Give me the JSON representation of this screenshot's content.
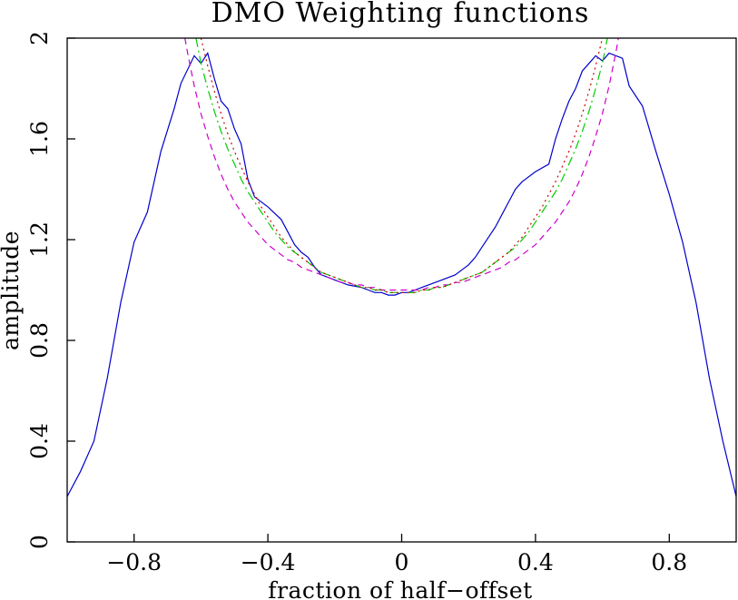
{
  "chart_data": {
    "type": "line",
    "title": "DMO Weighting functions",
    "xlabel": "fraction of half−offset",
    "ylabel": "amplitude",
    "xlim": [
      -1,
      1
    ],
    "ylim": [
      0,
      2
    ],
    "xticks": [
      {
        "value": -0.8,
        "label": "−0.8"
      },
      {
        "value": -0.4,
        "label": "−0.4"
      },
      {
        "value": 0,
        "label": "0"
      },
      {
        "value": 0.4,
        "label": "0.4"
      },
      {
        "value": 0.8,
        "label": "0.8"
      }
    ],
    "yticks": [
      {
        "value": 0,
        "label": "0"
      },
      {
        "value": 0.4,
        "label": "0.4"
      },
      {
        "value": 0.8,
        "label": "0.8"
      },
      {
        "value": 1.2,
        "label": "1.2"
      },
      {
        "value": 1.6,
        "label": "1.6"
      },
      {
        "value": 2,
        "label": "2"
      }
    ],
    "grid": false,
    "legend": "none",
    "series": [
      {
        "color": "#0000cc",
        "dash": "solid",
        "x": [
          -1.0,
          -0.96,
          -0.92,
          -0.88,
          -0.84,
          -0.8,
          -0.76,
          -0.72,
          -0.68,
          -0.66,
          -0.62,
          -0.6,
          -0.58,
          -0.56,
          -0.54,
          -0.52,
          -0.5,
          -0.48,
          -0.46,
          -0.44,
          -0.4,
          -0.36,
          -0.34,
          -0.32,
          -0.3,
          -0.28,
          -0.26,
          -0.24,
          -0.22,
          -0.2,
          -0.18,
          -0.16,
          -0.12,
          -0.1,
          -0.08,
          -0.06,
          -0.04,
          -0.02,
          0.0,
          0.02,
          0.04,
          0.06,
          0.08,
          0.1,
          0.12,
          0.16,
          0.18,
          0.2,
          0.22,
          0.24,
          0.26,
          0.28,
          0.3,
          0.32,
          0.34,
          0.36,
          0.4,
          0.44,
          0.46,
          0.48,
          0.5,
          0.52,
          0.54,
          0.56,
          0.58,
          0.6,
          0.62,
          0.66,
          0.68,
          0.72,
          0.76,
          0.8,
          0.84,
          0.88,
          0.92,
          0.96,
          1.0
        ],
        "y": [
          0.18,
          0.28,
          0.4,
          0.65,
          0.95,
          1.19,
          1.31,
          1.55,
          1.72,
          1.82,
          1.93,
          1.9,
          1.94,
          1.84,
          1.75,
          1.72,
          1.64,
          1.58,
          1.44,
          1.37,
          1.33,
          1.28,
          1.23,
          1.18,
          1.15,
          1.13,
          1.09,
          1.06,
          1.05,
          1.04,
          1.03,
          1.02,
          1.01,
          1.0,
          0.99,
          0.99,
          0.98,
          0.98,
          0.99,
          0.99,
          1.0,
          1.01,
          1.02,
          1.03,
          1.04,
          1.06,
          1.08,
          1.1,
          1.13,
          1.17,
          1.21,
          1.25,
          1.3,
          1.35,
          1.4,
          1.43,
          1.47,
          1.5,
          1.6,
          1.68,
          1.75,
          1.8,
          1.87,
          1.9,
          1.93,
          1.91,
          1.94,
          1.92,
          1.81,
          1.73,
          1.55,
          1.38,
          1.19,
          0.95,
          0.65,
          0.4,
          0.18
        ]
      },
      {
        "color": "#cc00cc",
        "dash": "dashed",
        "x": [
          -0.648,
          -0.64,
          -0.62,
          -0.6,
          -0.58,
          -0.56,
          -0.54,
          -0.52,
          -0.5,
          -0.48,
          -0.46,
          -0.44,
          -0.42,
          -0.4,
          -0.38,
          -0.36,
          -0.34,
          -0.32,
          -0.3,
          -0.28,
          -0.26,
          -0.24,
          -0.22,
          -0.2,
          -0.18,
          -0.16,
          -0.14,
          -0.12,
          -0.1,
          -0.08,
          -0.06,
          -0.04,
          -0.02,
          0.0,
          0.02,
          0.04,
          0.06,
          0.08,
          0.1,
          0.12,
          0.14,
          0.16,
          0.18,
          0.2,
          0.22,
          0.24,
          0.26,
          0.28,
          0.3,
          0.32,
          0.34,
          0.36,
          0.38,
          0.4,
          0.42,
          0.44,
          0.46,
          0.48,
          0.5,
          0.52,
          0.54,
          0.56,
          0.58,
          0.6,
          0.62,
          0.64,
          0.648
        ],
        "y": [
          2.0,
          1.94,
          1.81,
          1.7,
          1.61,
          1.53,
          1.46,
          1.4,
          1.35,
          1.31,
          1.27,
          1.24,
          1.21,
          1.18,
          1.16,
          1.14,
          1.12,
          1.11,
          1.09,
          1.08,
          1.07,
          1.06,
          1.05,
          1.04,
          1.03,
          1.03,
          1.02,
          1.02,
          1.01,
          1.01,
          1.0,
          1.0,
          1.0,
          1.0,
          1.0,
          1.0,
          1.0,
          1.01,
          1.01,
          1.02,
          1.02,
          1.03,
          1.03,
          1.04,
          1.05,
          1.06,
          1.07,
          1.08,
          1.09,
          1.11,
          1.12,
          1.14,
          1.16,
          1.18,
          1.21,
          1.24,
          1.27,
          1.31,
          1.35,
          1.4,
          1.46,
          1.53,
          1.61,
          1.7,
          1.81,
          1.94,
          2.0
        ]
      },
      {
        "color": "#00cc00",
        "dash": "dashdot",
        "x": [
          -0.615,
          -0.6,
          -0.58,
          -0.56,
          -0.54,
          -0.52,
          -0.5,
          -0.48,
          -0.46,
          -0.44,
          -0.42,
          -0.4,
          -0.38,
          -0.36,
          -0.34,
          -0.32,
          -0.3,
          -0.28,
          -0.26,
          -0.24,
          -0.22,
          -0.2,
          -0.18,
          -0.16,
          -0.14,
          -0.12,
          -0.1,
          -0.08,
          -0.06,
          -0.04,
          -0.02,
          0.0,
          0.02,
          0.04,
          0.06,
          0.08,
          0.1,
          0.12,
          0.14,
          0.16,
          0.18,
          0.2,
          0.22,
          0.24,
          0.26,
          0.28,
          0.3,
          0.32,
          0.34,
          0.36,
          0.38,
          0.4,
          0.42,
          0.44,
          0.46,
          0.48,
          0.5,
          0.52,
          0.54,
          0.56,
          0.58,
          0.6,
          0.615
        ],
        "y": [
          2.0,
          1.9,
          1.8,
          1.71,
          1.63,
          1.56,
          1.5,
          1.44,
          1.39,
          1.35,
          1.31,
          1.27,
          1.23,
          1.2,
          1.17,
          1.15,
          1.13,
          1.11,
          1.09,
          1.07,
          1.06,
          1.05,
          1.04,
          1.03,
          1.02,
          1.01,
          1.01,
          1.0,
          1.0,
          0.99,
          0.99,
          0.99,
          0.99,
          0.99,
          1.0,
          1.0,
          1.01,
          1.01,
          1.02,
          1.03,
          1.04,
          1.05,
          1.06,
          1.07,
          1.09,
          1.11,
          1.13,
          1.15,
          1.17,
          1.2,
          1.23,
          1.27,
          1.31,
          1.35,
          1.39,
          1.44,
          1.5,
          1.56,
          1.63,
          1.71,
          1.8,
          1.9,
          2.0
        ]
      },
      {
        "color": "#cc0000",
        "dash": "dotted",
        "x": [
          -0.6,
          -0.58,
          -0.56,
          -0.54,
          -0.52,
          -0.5,
          -0.48,
          -0.46,
          -0.44,
          -0.42,
          -0.4,
          -0.38,
          -0.36,
          -0.34,
          -0.32,
          -0.3,
          -0.28,
          -0.26,
          -0.24,
          -0.22,
          -0.2,
          -0.18,
          -0.16,
          -0.14,
          -0.12,
          -0.1,
          -0.08,
          -0.06,
          -0.04,
          -0.02,
          0.0,
          0.02,
          0.04,
          0.06,
          0.08,
          0.1,
          0.12,
          0.14,
          0.16,
          0.18,
          0.2,
          0.22,
          0.24,
          0.26,
          0.28,
          0.3,
          0.32,
          0.34,
          0.36,
          0.38,
          0.4,
          0.42,
          0.44,
          0.46,
          0.48,
          0.5,
          0.52,
          0.54,
          0.56,
          0.58,
          0.6
        ],
        "y": [
          2.0,
          1.89,
          1.79,
          1.7,
          1.62,
          1.55,
          1.49,
          1.43,
          1.38,
          1.33,
          1.29,
          1.25,
          1.21,
          1.18,
          1.15,
          1.13,
          1.11,
          1.09,
          1.07,
          1.06,
          1.05,
          1.04,
          1.03,
          1.02,
          1.01,
          1.01,
          1.0,
          1.0,
          0.99,
          0.99,
          0.99,
          0.99,
          0.99,
          1.0,
          1.0,
          1.01,
          1.01,
          1.02,
          1.03,
          1.04,
          1.05,
          1.06,
          1.07,
          1.09,
          1.11,
          1.13,
          1.15,
          1.18,
          1.21,
          1.25,
          1.29,
          1.33,
          1.38,
          1.43,
          1.49,
          1.55,
          1.62,
          1.7,
          1.79,
          1.89,
          2.0
        ]
      }
    ]
  }
}
